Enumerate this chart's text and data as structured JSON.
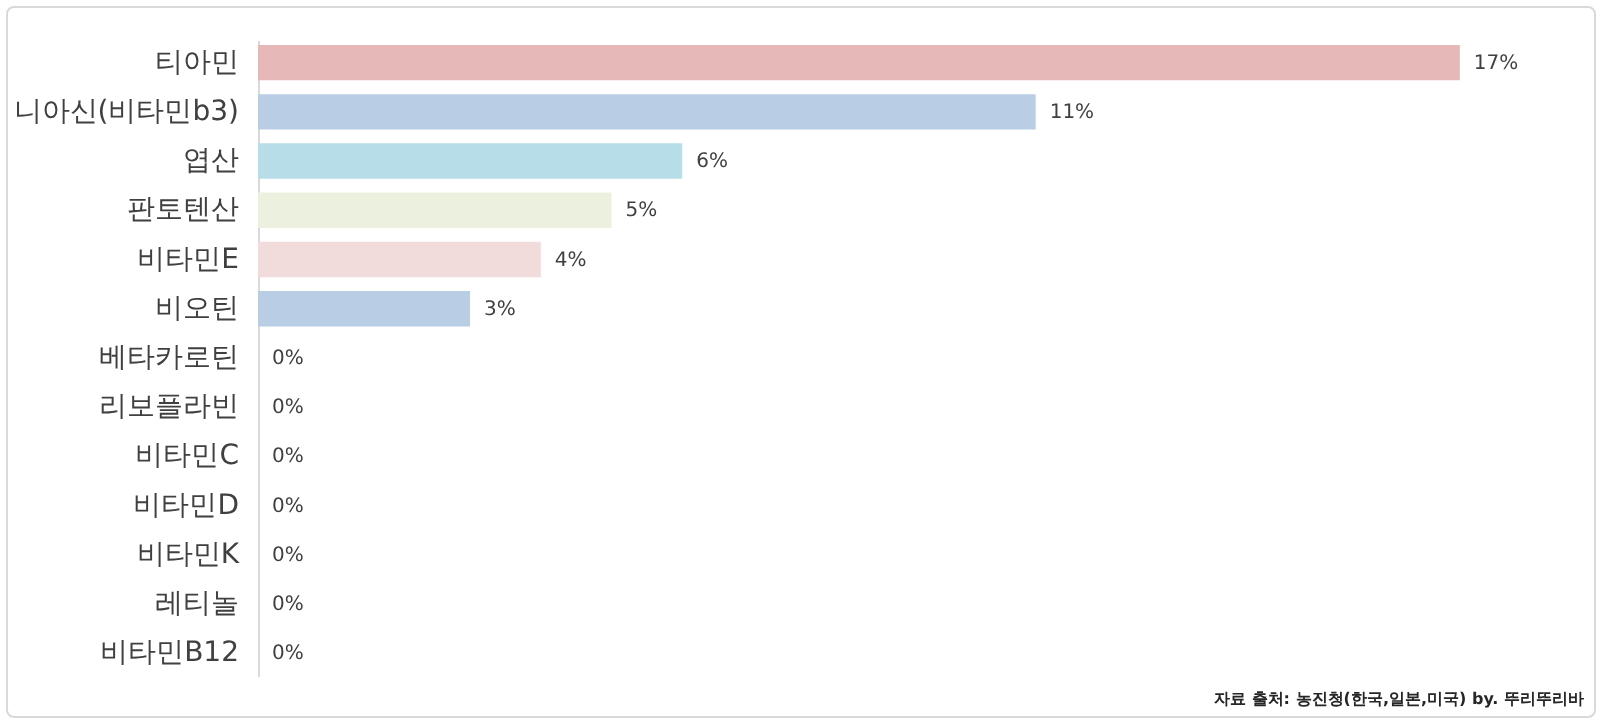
{
  "chart_data": {
    "type": "bar",
    "orientation": "horizontal",
    "categories": [
      "티아민",
      "니아신(비타민b3)",
      "엽산",
      "판토텐산",
      "비타민E",
      "비오틴",
      "베타카로틴",
      "리보플라빈",
      "비타민C",
      "비타민D",
      "비타민K",
      "레티놀",
      "비타민B12"
    ],
    "values": [
      17,
      11,
      6,
      5,
      4,
      3,
      0,
      0,
      0,
      0,
      0,
      0,
      0
    ],
    "value_labels": [
      "17%",
      "11%",
      "6%",
      "5%",
      "4%",
      "3%",
      "0%",
      "0%",
      "0%",
      "0%",
      "0%",
      "0%",
      "0%"
    ],
    "colors": [
      "#e6b8b8",
      "#b9cde5",
      "#b7dde8",
      "#ebf1de",
      "#f2dcdb",
      "#b9cde5",
      "#bfbfbf",
      "#4f81bd",
      "#b9cde5",
      "#b9cde5",
      "#b9cde5",
      "#b9cde5",
      "#b9cde5"
    ],
    "annotations": [
      "자료 출처: 농진청(한국,일본,미국) by. 뚜리뚜리바"
    ]
  }
}
